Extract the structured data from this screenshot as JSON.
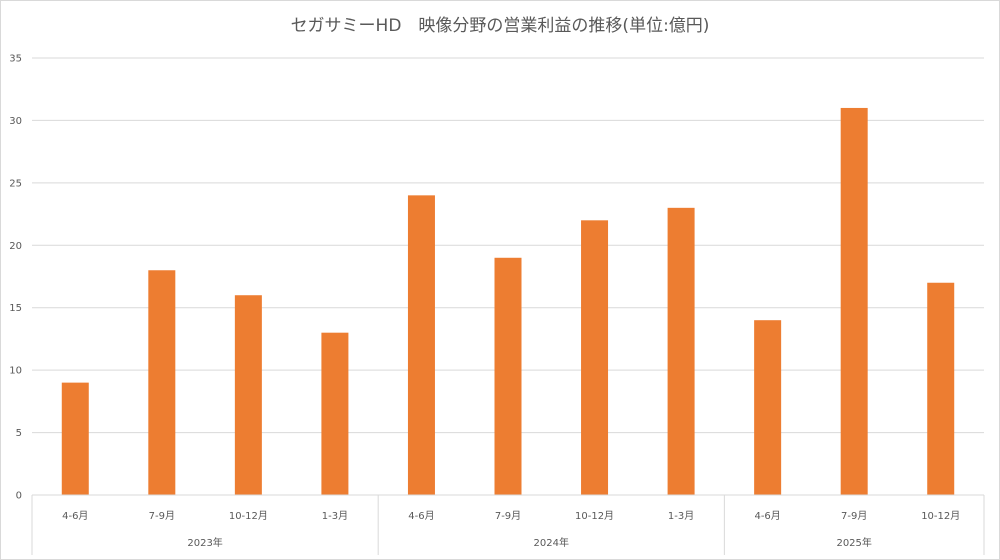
{
  "chart_data": {
    "type": "bar",
    "title": "セガサミーHD　映像分野の営業利益の推移(単位:億円)",
    "xlabel": "",
    "ylabel": "",
    "ylim": [
      0,
      35
    ],
    "yticks": [
      0,
      5,
      10,
      15,
      20,
      25,
      30,
      35
    ],
    "grid": true,
    "legend": "none",
    "bar_color": "#ed7d31",
    "gridline_color": "#d9d9d9",
    "text_color": "#595959",
    "categories": [
      "4-6月",
      "7-9月",
      "10-12月",
      "1-3月",
      "4-6月",
      "7-9月",
      "10-12月",
      "1-3月",
      "4-6月",
      "7-9月",
      "10-12月"
    ],
    "values": [
      9,
      18,
      16,
      13,
      24,
      19,
      22,
      23,
      14,
      31,
      17
    ],
    "groups": [
      {
        "label": "2023年",
        "count": 4
      },
      {
        "label": "2024年",
        "count": 4
      },
      {
        "label": "2025年",
        "count": 3
      }
    ]
  }
}
